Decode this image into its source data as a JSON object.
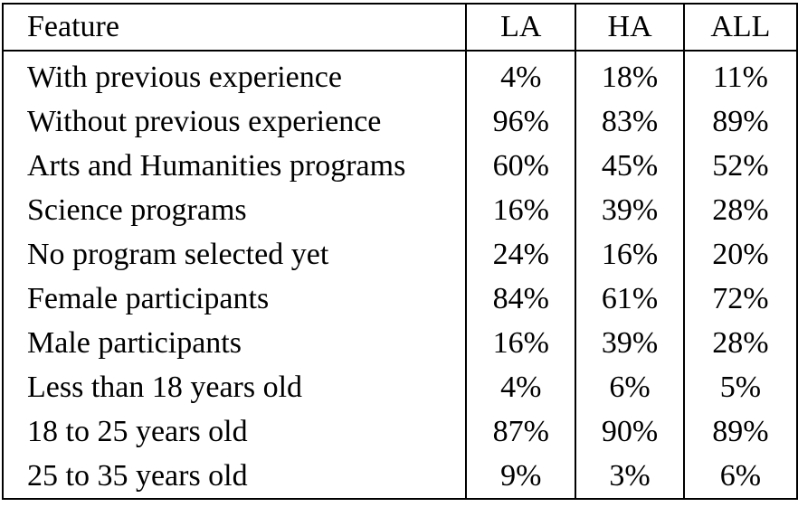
{
  "table": {
    "headers": [
      "Feature",
      "LA",
      "HA",
      "ALL"
    ],
    "rows": [
      [
        "With previous experience",
        "4%",
        "18%",
        "11%"
      ],
      [
        "Without previous experience",
        "96%",
        "83%",
        "89%"
      ],
      [
        "Arts and Humanities programs",
        "60%",
        "45%",
        "52%"
      ],
      [
        "Science programs",
        "16%",
        "39%",
        "28%"
      ],
      [
        "No program selected yet",
        "24%",
        "16%",
        "20%"
      ],
      [
        "Female participants",
        "84%",
        "61%",
        "72%"
      ],
      [
        "Male participants",
        "16%",
        "39%",
        "28%"
      ],
      [
        "Less than 18 years old",
        "4%",
        "6%",
        "5%"
      ],
      [
        "18 to 25 years old",
        "87%",
        "90%",
        "89%"
      ],
      [
        "25 to 35 years old",
        "9%",
        "3%",
        "6%"
      ]
    ]
  }
}
